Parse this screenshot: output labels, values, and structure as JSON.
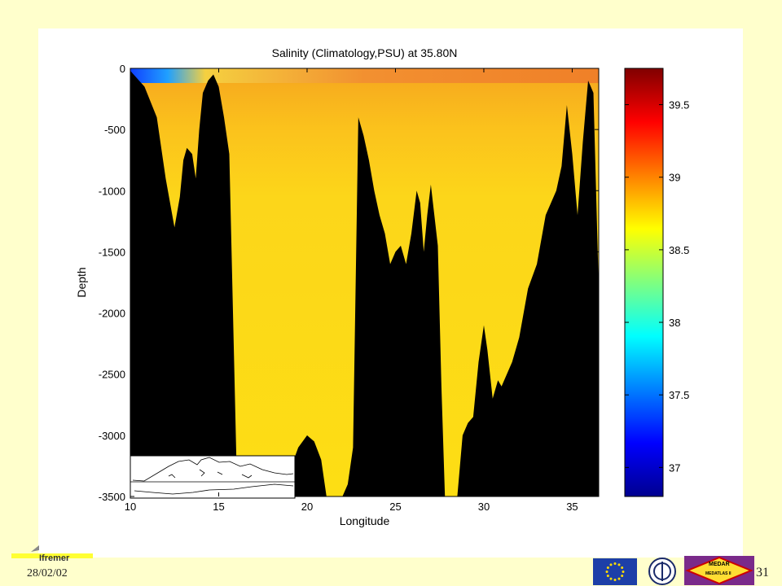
{
  "chart_data": {
    "type": "heatmap",
    "title": "Salinity (Climatology,PSU) at 35.80N",
    "xlabel": "Longitude",
    "ylabel": "Depth",
    "xlim": [
      10,
      36.5
    ],
    "ylim": [
      -3500,
      0
    ],
    "x_ticks": [
      10,
      15,
      20,
      25,
      30,
      35
    ],
    "y_ticks": [
      0,
      -500,
      -1000,
      -1500,
      -2000,
      -2500,
      -3000,
      -3500
    ],
    "colorbar": {
      "range": [
        36.8,
        39.75
      ],
      "ticks": [
        "37",
        "37.5",
        "38",
        "38.5",
        "39",
        "39.5"
      ],
      "tick_values": [
        37,
        37.5,
        38,
        38.5,
        39,
        39.5
      ],
      "colormap": "jet"
    },
    "seafloor_profile": {
      "x": [
        10,
        10.8,
        11.5,
        12.0,
        12.5,
        12.8,
        13.0,
        13.2,
        13.5,
        13.7,
        13.9,
        14.1,
        14.4,
        14.7,
        15.0,
        15.3,
        15.6,
        16.0,
        19.0,
        19.5,
        20.0,
        20.4,
        20.8,
        21.1,
        21.4,
        22.0,
        22.3,
        22.6,
        22.9,
        23.2,
        23.5,
        23.8,
        24.1,
        24.4,
        24.7,
        25.0,
        25.3,
        25.6,
        25.9,
        26.2,
        26.4,
        26.6,
        26.8,
        27.0,
        27.2,
        27.4,
        27.6,
        27.8,
        28.0,
        28.2,
        28.5,
        28.8,
        29.1,
        29.4,
        29.7,
        30.0,
        30.2,
        30.5,
        30.8,
        31.0,
        31.3,
        31.6,
        32.0,
        32.5,
        33.0,
        33.5,
        33.8,
        34.1,
        34.4,
        34.7,
        35.0,
        35.3,
        35.6,
        35.9,
        36.2,
        36.5
      ],
      "y": [
        -20,
        -150,
        -400,
        -900,
        -1300,
        -1050,
        -750,
        -650,
        -700,
        -900,
        -500,
        -200,
        -100,
        -50,
        -150,
        -400,
        -700,
        -3200,
        -3300,
        -3100,
        -3000,
        -3050,
        -3200,
        -3500,
        -3500,
        -3500,
        -3400,
        -3100,
        -400,
        -550,
        -750,
        -1000,
        -1200,
        -1350,
        -1600,
        -1500,
        -1450,
        -1600,
        -1350,
        -1000,
        -1100,
        -1500,
        -1200,
        -950,
        -1200,
        -1450,
        -2600,
        -3500,
        -3500,
        -3500,
        -3500,
        -3000,
        -2900,
        -2850,
        -2400,
        -2100,
        -2300,
        -2700,
        -2550,
        -2600,
        -2500,
        -2400,
        -2200,
        -1800,
        -1600,
        -1200,
        -1100,
        -1000,
        -800,
        -300,
        -700,
        -1200,
        -600,
        -100,
        -200,
        -1800
      ]
    },
    "inset_map": "Mediterranean Sea outline with section line at 35.80N"
  },
  "slide": {
    "date": "28/02/02",
    "page_number": "31",
    "logo_left": "Ifremer"
  },
  "logos": {
    "eu_flag": "eu-flag-icon",
    "ioc": "ioc-emblem-icon",
    "medar": "medar-medatlas-icon",
    "medar_text": "MEDAR",
    "medar_subtext": "MEDATLAS II"
  }
}
